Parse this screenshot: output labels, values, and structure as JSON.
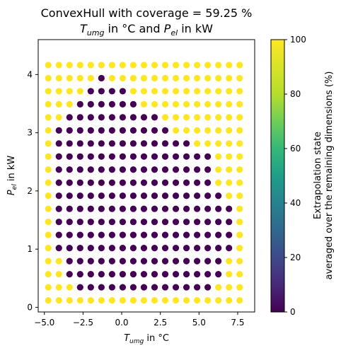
{
  "chart_data": {
    "type": "scatter",
    "title_line1": "ConvexHull with coverage = 59.25 %",
    "title_line2_prefix1": "T",
    "title_line2_sub1": "umg",
    "title_line2_mid": " in °C and ",
    "title_line2_prefix2": "P",
    "title_line2_sub2": "el",
    "title_line2_suffix": " in kW",
    "xlabel_main": "T",
    "xlabel_sub": "umg",
    "xlabel_suffix": " in °C",
    "ylabel_main": "P",
    "ylabel_sub": "el",
    "ylabel_suffix": " in kW",
    "colorbar_label_line1": "Extrapolation state",
    "colorbar_label_line2": "averaged over the remaining dimensions (%)",
    "xlim": [
      -5.4,
      8.6
    ],
    "ylim": [
      -0.08,
      4.6
    ],
    "xticks": [
      -5.0,
      -2.5,
      0.0,
      2.5,
      5.0,
      7.5
    ],
    "xtick_labels": [
      "−5.0",
      "−2.5",
      "0.0",
      "2.5",
      "5.0",
      "7.5"
    ],
    "yticks": [
      0,
      1,
      2,
      3,
      4
    ],
    "ytick_labels": [
      "0",
      "1",
      "2",
      "3",
      "4"
    ],
    "colorbar_ticks": [
      0,
      20,
      40,
      60,
      80,
      100
    ],
    "colorbar_tick_labels": [
      "0",
      "20",
      "40",
      "60",
      "80",
      "100"
    ],
    "colormap": "viridis",
    "low_color": "#440154",
    "high_color": "#fde725",
    "grid": false,
    "grid_x": {
      "start": -4.75,
      "step": 0.6875,
      "count": 19
    },
    "grid_y": {
      "start": 0.12,
      "step": 0.2246,
      "count": 19
    },
    "grid_values_note_rows_top_to_bottom": "1 = 100% extrapolation (yellow), 0 = 0% (purple)",
    "rows": [
      "1111111111111111111",
      "1111101111111111111",
      "1111000011111111111",
      "1110000001111111111",
      "1100000000011111111",
      "1000000000001111111",
      "1000000000000011111",
      "1000000000000000111",
      "1000000000000000111",
      "1000000000000000111",
      "1000000000000000011",
      "1000000000000000001",
      "1000000000000000001",
      "1000000000000000001",
      "1000000000000000001",
      "1100000000000000011",
      "1100000000000000011",
      "1110000000000000111",
      "1111111111111111111"
    ]
  }
}
